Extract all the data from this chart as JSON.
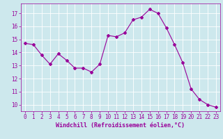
{
  "x": [
    0,
    1,
    2,
    3,
    4,
    5,
    6,
    7,
    8,
    9,
    10,
    11,
    12,
    13,
    14,
    15,
    16,
    17,
    18,
    19,
    20,
    21,
    22,
    23
  ],
  "y": [
    14.7,
    14.6,
    13.8,
    13.1,
    13.9,
    13.4,
    12.8,
    12.8,
    12.5,
    13.1,
    15.3,
    15.2,
    15.5,
    16.5,
    16.7,
    17.3,
    17.0,
    15.9,
    14.6,
    13.2,
    11.2,
    10.4,
    10.0,
    9.8
  ],
  "line_color": "#990099",
  "marker": "D",
  "marker_size": 2.0,
  "bg_color": "#cde8ed",
  "grid_color": "#b0d4da",
  "xlim": [
    -0.5,
    23.5
  ],
  "ylim": [
    9.5,
    17.75
  ],
  "yticks": [
    10,
    11,
    12,
    13,
    14,
    15,
    16,
    17
  ],
  "xticks": [
    0,
    1,
    2,
    3,
    4,
    5,
    6,
    7,
    8,
    9,
    10,
    11,
    12,
    13,
    14,
    15,
    16,
    17,
    18,
    19,
    20,
    21,
    22,
    23
  ],
  "tick_color": "#990099",
  "label_color": "#990099",
  "spine_color": "#990099",
  "xlabel": "Windchill (Refroidissement éolien,°C)",
  "tick_fontsize": 5.5,
  "xlabel_fontsize": 6.0
}
